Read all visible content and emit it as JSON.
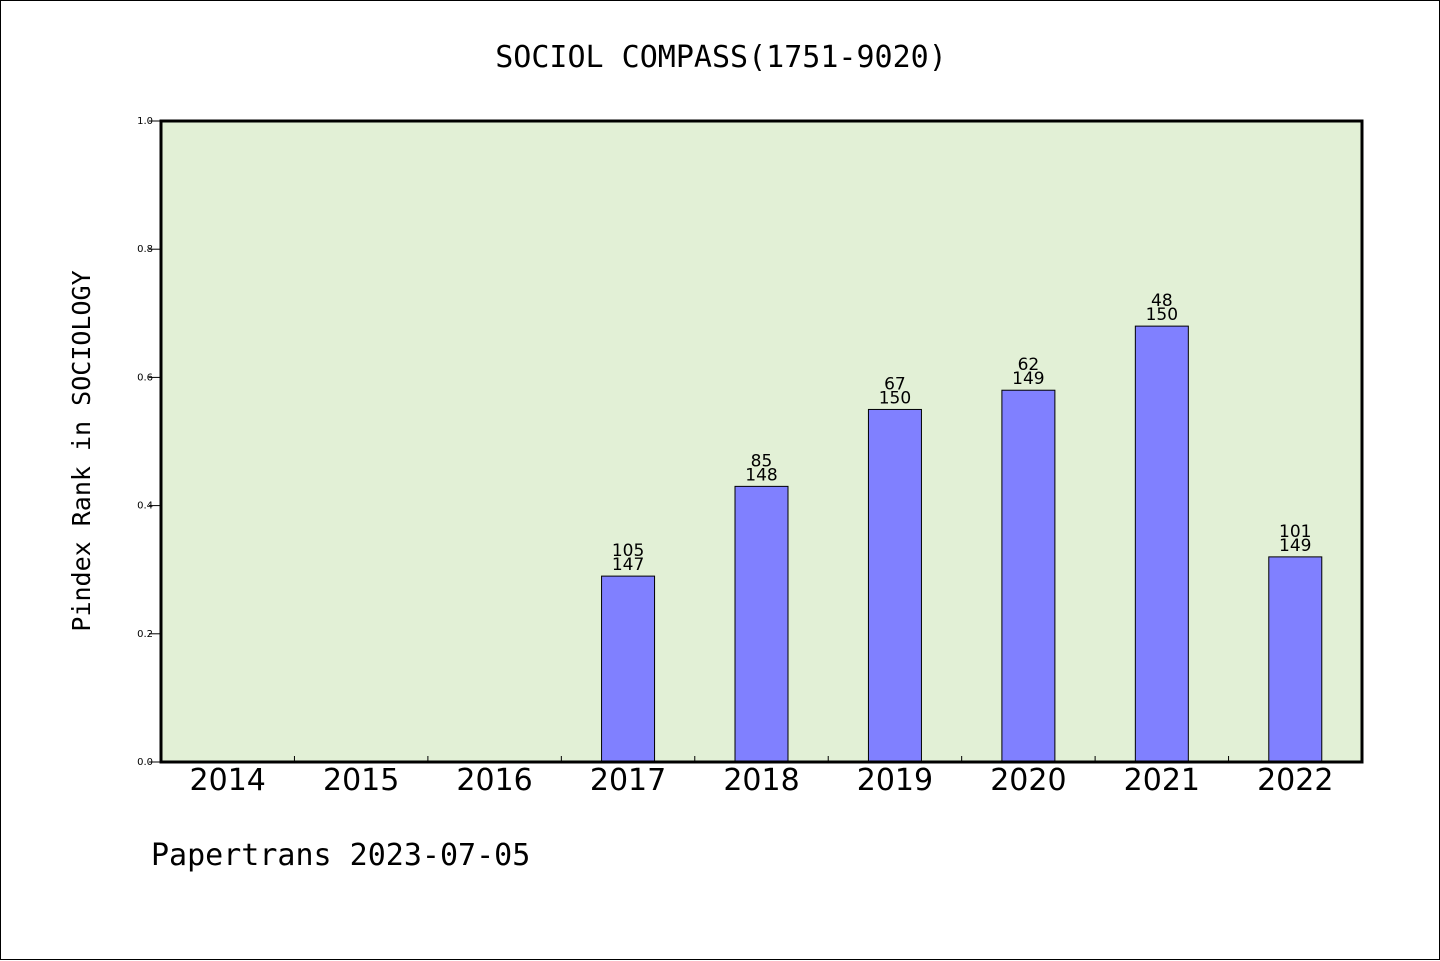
{
  "chart_data": {
    "type": "bar",
    "title": "SOCIOL COMPASS(1751-9020)",
    "xlabel": "",
    "ylabel": "Pindex Rank in SOCIOLOGY",
    "categories": [
      "2014",
      "2015",
      "2016",
      "2017",
      "2018",
      "2019",
      "2020",
      "2021",
      "2022"
    ],
    "values": [
      null,
      null,
      null,
      0.29,
      0.43,
      0.55,
      0.58,
      0.68,
      0.32
    ],
    "rank_labels": [
      "",
      "",
      "",
      "105",
      "85",
      "67",
      "62",
      "48",
      "101"
    ],
    "total_labels": [
      "",
      "",
      "",
      "147",
      "148",
      "150",
      "149",
      "150",
      "149"
    ],
    "ylim": [
      0,
      1.0
    ],
    "yticks": [
      "0.0",
      "0.2",
      "0.4",
      "0.6",
      "0.8",
      "1.0"
    ],
    "grid": false,
    "colors": {
      "bar": "#8080ff",
      "plot_background": "#e2f0d6",
      "axis": "#000000"
    }
  },
  "footer": {
    "text": "Papertrans 2023-07-05"
  }
}
